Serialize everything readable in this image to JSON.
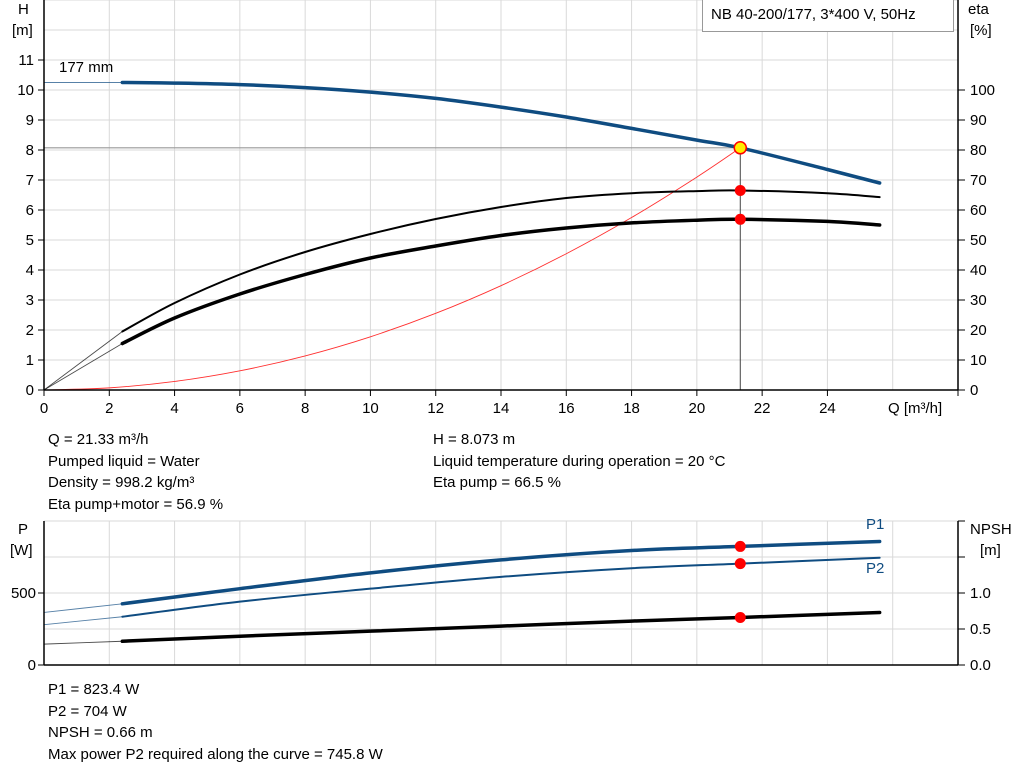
{
  "title": "NB 40-200/177, 3*400 V, 50Hz",
  "colors": {
    "head": "#0f4c81",
    "efficiency": "#000000",
    "system_curve": "#ff3030",
    "marker": "#ff0000",
    "duty_marker_fill": "#ffee00",
    "grid": "#d9d9d9"
  },
  "chart_data": [
    {
      "type": "line",
      "name": "head-efficiency-chart",
      "xlabel": "Q [m³/h]",
      "ylabel": {
        "name": "H",
        "unit": "[m]"
      },
      "y2label": {
        "name": "eta",
        "unit": "[%]"
      },
      "xlim": [
        0,
        28
      ],
      "ylim": [
        0,
        13
      ],
      "y2lim": [
        0,
        130
      ],
      "xticks": [
        0,
        2,
        4,
        6,
        8,
        10,
        12,
        14,
        16,
        18,
        20,
        22,
        24
      ],
      "yticks": [
        0,
        1,
        2,
        3,
        4,
        5,
        6,
        7,
        8,
        9,
        10,
        11
      ],
      "y2ticks": [
        0,
        10,
        20,
        30,
        40,
        50,
        60,
        70,
        80,
        90,
        100
      ],
      "grid": true,
      "curve_label": "177 mm",
      "solid_from_q": 2.4,
      "series": [
        {
          "key": "head",
          "axis": "y",
          "x": [
            0,
            2.4,
            4,
            6,
            8,
            10,
            12,
            14,
            16,
            18,
            20,
            21.33,
            24,
            25.6
          ],
          "y": [
            10.25,
            10.25,
            10.23,
            10.18,
            10.08,
            9.93,
            9.72,
            9.43,
            9.1,
            8.72,
            8.33,
            8.073,
            7.35,
            6.9
          ]
        },
        {
          "key": "eta_pump",
          "axis": "y2",
          "x": [
            0,
            2.4,
            4,
            6,
            8,
            10,
            12,
            14,
            16,
            18,
            20,
            21.33,
            24,
            25.6
          ],
          "y": [
            0,
            19.5,
            29,
            38.5,
            46,
            52,
            57,
            61,
            64,
            65.6,
            66.3,
            66.5,
            65.6,
            64.3
          ]
        },
        {
          "key": "eta_total",
          "axis": "y2",
          "x": [
            0,
            2.4,
            4,
            6,
            8,
            10,
            12,
            14,
            16,
            18,
            20,
            21.33,
            24,
            25.6
          ],
          "y": [
            0,
            15.5,
            24,
            32,
            38.5,
            44,
            48,
            51.5,
            54,
            55.7,
            56.6,
            56.9,
            56.2,
            55
          ]
        },
        {
          "key": "system",
          "axis": "y",
          "x": [
            0,
            2,
            4,
            6,
            8,
            10,
            12,
            14,
            16,
            18,
            20,
            21.33
          ],
          "y": [
            0,
            0.071,
            0.284,
            0.639,
            1.136,
            1.774,
            2.555,
            3.478,
            4.542,
            5.749,
            7.097,
            8.073
          ]
        }
      ],
      "duty_point": {
        "q": 21.33,
        "h": 8.073,
        "eta_pump": 66.5,
        "eta_total": 56.9
      }
    },
    {
      "type": "line",
      "name": "power-npsh-chart",
      "ylabel": {
        "name": "P",
        "unit": "[W]"
      },
      "y2label": {
        "name": "NPSH",
        "unit": "[m]"
      },
      "xlim": [
        0,
        28
      ],
      "ylim": [
        0,
        1000
      ],
      "y2lim": [
        0,
        2.0
      ],
      "yticks": [
        0,
        500
      ],
      "y2ticks": [
        "0.0",
        "0.5",
        "1.0",
        "",
        ""
      ],
      "y2tick_values": [
        0,
        0.5,
        1.0,
        1.5,
        2.0
      ],
      "grid": true,
      "solid_from_q": 2.4,
      "series": [
        {
          "key": "p1",
          "name": "P1",
          "axis": "y",
          "x": [
            0,
            2.4,
            6,
            10,
            14,
            18,
            21.33,
            25.6
          ],
          "y": [
            365,
            425,
            530,
            640,
            730,
            795,
            823.4,
            858
          ]
        },
        {
          "key": "p2",
          "name": "P2",
          "axis": "y",
          "x": [
            0,
            2.4,
            6,
            10,
            14,
            18,
            21.33,
            25.6
          ],
          "y": [
            280,
            335,
            440,
            530,
            612,
            672,
            704,
            745
          ]
        },
        {
          "key": "npsh",
          "axis": "y2",
          "x": [
            0,
            2.4,
            6,
            10,
            14,
            18,
            21.33,
            25.6
          ],
          "y": [
            0.29,
            0.33,
            0.4,
            0.47,
            0.54,
            0.61,
            0.66,
            0.73
          ]
        }
      ],
      "duty_point": {
        "q": 21.33,
        "p1": 823.4,
        "p2": 704,
        "npsh": 0.66
      }
    }
  ],
  "info_top": {
    "left": [
      "Q = 21.33 m³/h",
      "Pumped liquid = Water",
      "Density = 998.2 kg/m³",
      "Eta pump+motor = 56.9 %"
    ],
    "right": [
      "H = 8.073 m",
      "Liquid temperature during operation = 20 °C",
      "Eta pump = 66.5 %"
    ]
  },
  "info_bottom": [
    "P1 = 823.4 W",
    "P2 = 704 W",
    "NPSH = 0.66 m",
    "Max power P2 required along the curve = 745.8 W"
  ]
}
